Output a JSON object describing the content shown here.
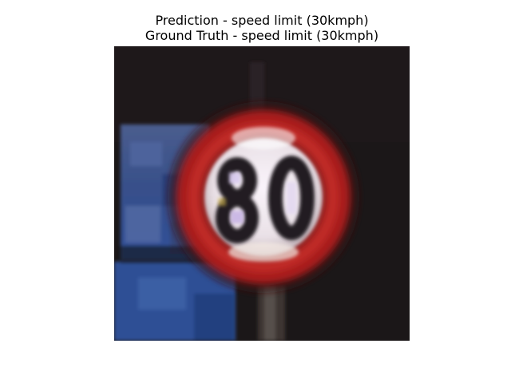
{
  "figure": {
    "prediction_title": "Prediction - speed limit (30kmph)",
    "ground_truth_title": "Ground Truth - speed limit (30kmph)"
  },
  "image": {
    "subject": "speed-limit-sign-photo",
    "sign_text": "80",
    "colors": {
      "background": "#1b1718",
      "ring_red": "#a81b1c",
      "ring_inner_red": "#c02a26",
      "sign_face": "#f4eef4",
      "digits": "#221c22",
      "blue_panel": "#3a4f86",
      "blue_panel_lower": "#2d4f95",
      "pole": "#3c3432"
    }
  }
}
